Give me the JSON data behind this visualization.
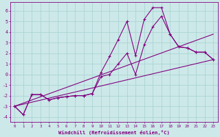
{
  "xlabel": "Windchill (Refroidissement éolien,°C)",
  "background_color": "#cde8e8",
  "line_color": "#800080",
  "grid_color": "#aad4d4",
  "xlim": [
    -0.5,
    23.5
  ],
  "ylim": [
    -4.5,
    6.8
  ],
  "xticks": [
    0,
    1,
    2,
    3,
    4,
    5,
    6,
    7,
    8,
    9,
    10,
    11,
    12,
    13,
    14,
    15,
    16,
    17,
    18,
    19,
    20,
    21,
    22,
    23
  ],
  "yticks": [
    -4,
    -3,
    -2,
    -1,
    0,
    1,
    2,
    3,
    4,
    5,
    6
  ],
  "lines": [
    {
      "x": [
        0,
        1,
        2,
        3,
        4,
        5,
        6,
        7,
        8,
        9,
        10,
        11,
        12,
        13,
        14,
        15,
        16,
        17,
        18,
        19,
        20,
        21,
        22,
        23
      ],
      "y": [
        -3.0,
        -3.8,
        -1.9,
        -1.9,
        -2.4,
        -2.2,
        -2.1,
        -2.0,
        -2.0,
        -1.8,
        0.2,
        1.7,
        3.3,
        5.0,
        1.8,
        5.2,
        6.3,
        6.3,
        3.8,
        2.6,
        2.5,
        2.1,
        2.1,
        1.4
      ],
      "markers": true
    },
    {
      "x": [
        0,
        1,
        2,
        3,
        4,
        5,
        6,
        7,
        8,
        9,
        10,
        11,
        12,
        13,
        14,
        15,
        16,
        17,
        18,
        19,
        20,
        21,
        22,
        23
      ],
      "y": [
        -3.0,
        -3.8,
        -1.9,
        -1.9,
        -2.4,
        -2.2,
        -2.1,
        -2.0,
        -2.0,
        -1.8,
        -0.2,
        0.0,
        1.0,
        2.0,
        0.0,
        2.8,
        4.5,
        5.5,
        3.8,
        2.6,
        2.5,
        2.1,
        2.1,
        1.4
      ],
      "markers": true
    },
    {
      "x": [
        0,
        23
      ],
      "y": [
        -3.0,
        3.8
      ],
      "markers": false
    },
    {
      "x": [
        0,
        23
      ],
      "y": [
        -3.0,
        1.4
      ],
      "markers": false
    }
  ]
}
